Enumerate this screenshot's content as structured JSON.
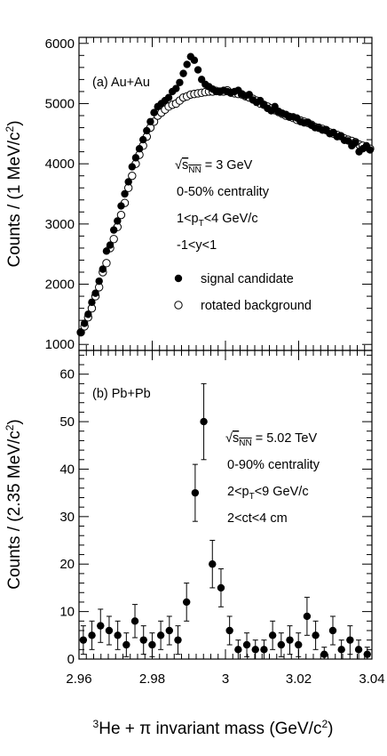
{
  "chart_data": [
    {
      "type": "scatter",
      "panel_label": "(a) Au+Au",
      "ylabel": "Counts / (1 MeV/c",
      "ylabel_sup": "2",
      "ylabel_close": ")",
      "xlim": [
        2.96,
        3.04
      ],
      "ylim": [
        900,
        6100
      ],
      "yticks": [
        1000,
        2000,
        3000,
        4000,
        5000,
        6000
      ],
      "grid": false,
      "legend_position": "bottom-right",
      "annotations": {
        "energy_pre": "√",
        "energy_s": "s",
        "energy_sub": "NN",
        "energy_val": " = 3 GeV",
        "centrality": "0-50% centrality",
        "pt_pre": "1<p",
        "pt_sub": "T",
        "pt_post": "<4 GeV/c",
        "rapidity": "-1<y<1"
      },
      "series": [
        {
          "name": "signal candidate",
          "marker": "filled-circle",
          "x": [
            2.9605,
            2.9615,
            2.9625,
            2.9635,
            2.9645,
            2.9655,
            2.9665,
            2.9675,
            2.9685,
            2.9695,
            2.9705,
            2.9715,
            2.9725,
            2.9735,
            2.9745,
            2.9755,
            2.9765,
            2.9775,
            2.9785,
            2.9795,
            2.9805,
            2.9815,
            2.9825,
            2.9835,
            2.9845,
            2.9855,
            2.9865,
            2.9875,
            2.9885,
            2.9895,
            2.9905,
            2.9915,
            2.9925,
            2.9935,
            2.9945,
            2.9955,
            2.9965,
            2.9975,
            2.9985,
            2.9995,
            3.0005,
            3.0015,
            3.0025,
            3.0035,
            3.0045,
            3.0055,
            3.0065,
            3.0075,
            3.0085,
            3.0095,
            3.0105,
            3.0115,
            3.0125,
            3.0135,
            3.0145,
            3.0155,
            3.0165,
            3.0175,
            3.0185,
            3.0195,
            3.0205,
            3.0215,
            3.0225,
            3.0235,
            3.0245,
            3.0255,
            3.0265,
            3.0275,
            3.0285,
            3.0295,
            3.0305,
            3.0315,
            3.0325,
            3.0335,
            3.0345,
            3.0355,
            3.0365,
            3.0375,
            3.0385,
            3.0395
          ],
          "y": [
            1200,
            1350,
            1500,
            1700,
            1850,
            2050,
            2250,
            2550,
            2650,
            2900,
            3050,
            3300,
            3500,
            3700,
            3950,
            4100,
            4250,
            4400,
            4550,
            4700,
            4850,
            4950,
            5000,
            5050,
            5100,
            5200,
            5250,
            5350,
            5500,
            5650,
            5780,
            5720,
            5560,
            5400,
            5320,
            5280,
            5240,
            5200,
            5200,
            5220,
            5200,
            5180,
            5200,
            5220,
            5160,
            5130,
            5150,
            5060,
            5020,
            5050,
            4980,
            4920,
            4880,
            4950,
            4870,
            4840,
            4820,
            4780,
            4780,
            4760,
            4700,
            4680,
            4690,
            4640,
            4600,
            4590,
            4560,
            4560,
            4500,
            4520,
            4450,
            4460,
            4390,
            4380,
            4300,
            4350,
            4200,
            4250,
            4300,
            4230
          ]
        },
        {
          "name": "rotated background",
          "marker": "open-circle",
          "x": [
            2.9605,
            2.9615,
            2.9625,
            2.9635,
            2.9645,
            2.9655,
            2.9665,
            2.9675,
            2.9685,
            2.9695,
            2.9705,
            2.9715,
            2.9725,
            2.9735,
            2.9745,
            2.9755,
            2.9765,
            2.9775,
            2.9785,
            2.9795,
            2.9805,
            2.9815,
            2.9825,
            2.9835,
            2.9845,
            2.9855,
            2.9865,
            2.9875,
            2.9885,
            2.9895,
            2.9905,
            2.9915,
            2.9925,
            2.9935,
            2.9945,
            2.9955,
            2.9965,
            2.9975,
            2.9985,
            2.9995,
            3.0005,
            3.0015,
            3.0025,
            3.0035,
            3.0045,
            3.0055,
            3.0065,
            3.0075,
            3.0085,
            3.0095,
            3.0105,
            3.0115,
            3.0125,
            3.0135,
            3.0145,
            3.0155,
            3.0165,
            3.0175,
            3.0185,
            3.0195,
            3.0205,
            3.0215,
            3.0225,
            3.0235,
            3.0245,
            3.0255,
            3.0265,
            3.0275,
            3.0285,
            3.0295,
            3.0305,
            3.0315,
            3.0325,
            3.0335,
            3.0345,
            3.0355,
            3.0365,
            3.0375,
            3.0385,
            3.0395
          ],
          "y": [
            1200,
            1300,
            1450,
            1600,
            1800,
            1950,
            2200,
            2350,
            2600,
            2750,
            2950,
            3150,
            3350,
            3600,
            3800,
            4000,
            4150,
            4300,
            4450,
            4600,
            4700,
            4800,
            4850,
            4900,
            4950,
            4980,
            5000,
            5050,
            5100,
            5120,
            5150,
            5160,
            5170,
            5180,
            5190,
            5200,
            5200,
            5210,
            5200,
            5200,
            5220,
            5180,
            5170,
            5160,
            5150,
            5120,
            5100,
            5080,
            5050,
            5000,
            4980,
            4950,
            4920,
            4890,
            4860,
            4830,
            4800,
            4780,
            4760,
            4730,
            4720,
            4700,
            4680,
            4650,
            4610,
            4600,
            4580,
            4560,
            4520,
            4500,
            4480,
            4460,
            4420,
            4400,
            4380,
            4360,
            4320,
            4300,
            4280,
            4250
          ]
        }
      ]
    },
    {
      "type": "scatter",
      "panel_label": "(b) Pb+Pb",
      "ylabel": "Counts / (2.35 MeV/c",
      "ylabel_sup": "2",
      "ylabel_close": ")",
      "xlim": [
        2.96,
        3.04
      ],
      "ylim": [
        0,
        65
      ],
      "yticks": [
        0,
        10,
        20,
        30,
        40,
        50,
        60
      ],
      "xticks": [
        2.96,
        2.98,
        3,
        3.02,
        3.04
      ],
      "xtick_labels": [
        "2.96",
        "2.98",
        "3",
        "3.02",
        "3.04"
      ],
      "xlabel_sup": "3",
      "xlabel": "He + π invariant mass (GeV/c",
      "xlabel_sup2": "2",
      "xlabel_close": ")",
      "grid": false,
      "annotations": {
        "energy_pre": "√",
        "energy_s": "s",
        "energy_sub": "NN",
        "energy_val": " = 5.02 TeV",
        "centrality": "0-90% centrality",
        "pt_pre": "2<p",
        "pt_sub": "T",
        "pt_post": "<9 GeV/c",
        "ct": "2<ct<4 cm"
      },
      "series": [
        {
          "name": "",
          "marker": "filled-circle-errorbar",
          "x": [
            2.96118,
            2.96353,
            2.96588,
            2.96823,
            2.97058,
            2.97293,
            2.97528,
            2.97763,
            2.97998,
            2.98233,
            2.98468,
            2.98703,
            2.98938,
            2.99173,
            2.99408,
            2.99643,
            2.99878,
            3.00113,
            3.00348,
            3.00583,
            3.00818,
            3.01053,
            3.01288,
            3.01523,
            3.01758,
            3.01993,
            3.02228,
            3.02463,
            3.02698,
            3.02933,
            3.03168,
            3.03403,
            3.03638,
            3.03873
          ],
          "y": [
            4,
            5,
            7,
            6,
            5,
            3,
            8,
            4,
            3,
            5,
            6,
            4,
            12,
            35,
            50,
            20,
            15,
            6,
            2,
            3,
            2,
            2,
            5,
            3,
            4,
            3,
            9,
            5,
            1,
            6,
            2,
            4,
            2,
            1
          ],
          "err": [
            3,
            3,
            3.5,
            3,
            3,
            2.5,
            3.5,
            3,
            2.5,
            3,
            3,
            3,
            4,
            6,
            8,
            5,
            4,
            3,
            2,
            2.5,
            2,
            2,
            3,
            2.5,
            3,
            2.5,
            4,
            3,
            1.5,
            3,
            2,
            3,
            2,
            1.5
          ]
        }
      ]
    }
  ]
}
